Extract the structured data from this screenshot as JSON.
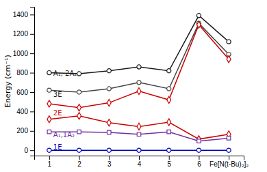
{
  "chart_data": {
    "type": "line",
    "categories": [
      "1",
      "2",
      "3",
      "4",
      "5",
      "6",
      "Fe[N(t-Bu)₂]₂"
    ],
    "series": [
      {
        "color": "#1a1a1a",
        "marker": "circle",
        "values": [
          800,
          790,
          820,
          860,
          820,
          1390,
          1120
        ]
      },
      {
        "color": "#444444",
        "marker": "circle",
        "values": [
          620,
          600,
          635,
          700,
          635,
          1310,
          990
        ]
      },
      {
        "color": "#cc0000",
        "marker": "diamond",
        "values": [
          480,
          440,
          490,
          610,
          520,
          1295,
          940
        ]
      },
      {
        "color": "#cc0000",
        "marker": "diamond",
        "values": [
          320,
          355,
          285,
          245,
          290,
          115,
          165
        ]
      },
      {
        "color": "#7030a0",
        "marker": "square",
        "values": [
          190,
          190,
          185,
          165,
          190,
          95,
          125
        ]
      },
      {
        "color": "#0000bb",
        "marker": "circle",
        "values": [
          0,
          0,
          0,
          0,
          0,
          0,
          0
        ]
      }
    ],
    "ylabel": "Energy (cm⁻¹)",
    "ylim": [
      -55,
      1480
    ],
    "yticks": [
      0,
      200,
      400,
      600,
      800,
      1000,
      1200,
      1400
    ],
    "grid": false,
    "annotations": [
      {
        "text": "A₁, 2A₂",
        "y": 790,
        "color": "#1a1a1a"
      },
      {
        "text": "3E",
        "y": 575,
        "color": "#1a1a1a"
      },
      {
        "text": "2E",
        "y": 380,
        "color": "#cc0000"
      },
      {
        "text": "A₁,1A₂",
        "y": 155,
        "color": "#7030a0"
      },
      {
        "text": "1E",
        "y": 28,
        "color": "#0000bb"
      }
    ]
  }
}
